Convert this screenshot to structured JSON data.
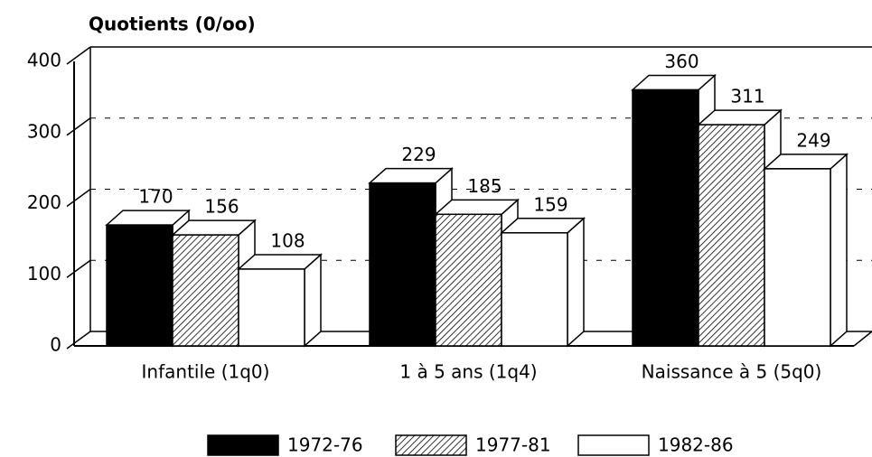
{
  "chart_data": {
    "type": "bar3d",
    "y_axis_label": "Quotients (0/oo)",
    "categories": [
      "Infantile (1q0)",
      "1 à 5 ans (1q4)",
      "Naissance à 5 (5q0)"
    ],
    "series": [
      {
        "name": "1972-76",
        "color": "#000000",
        "pattern": "solid",
        "values": [
          170,
          229,
          360
        ]
      },
      {
        "name": "1977-81",
        "color": "#000000",
        "pattern": "diagonal",
        "values": [
          156,
          185,
          311
        ]
      },
      {
        "name": "1982-86",
        "color": "#000000",
        "pattern": "none",
        "values": [
          108,
          159,
          249
        ]
      }
    ],
    "ylim": [
      0,
      400
    ],
    "yticks": [
      0,
      100,
      200,
      300,
      400
    ],
    "grid": true,
    "legend": "bottom"
  }
}
